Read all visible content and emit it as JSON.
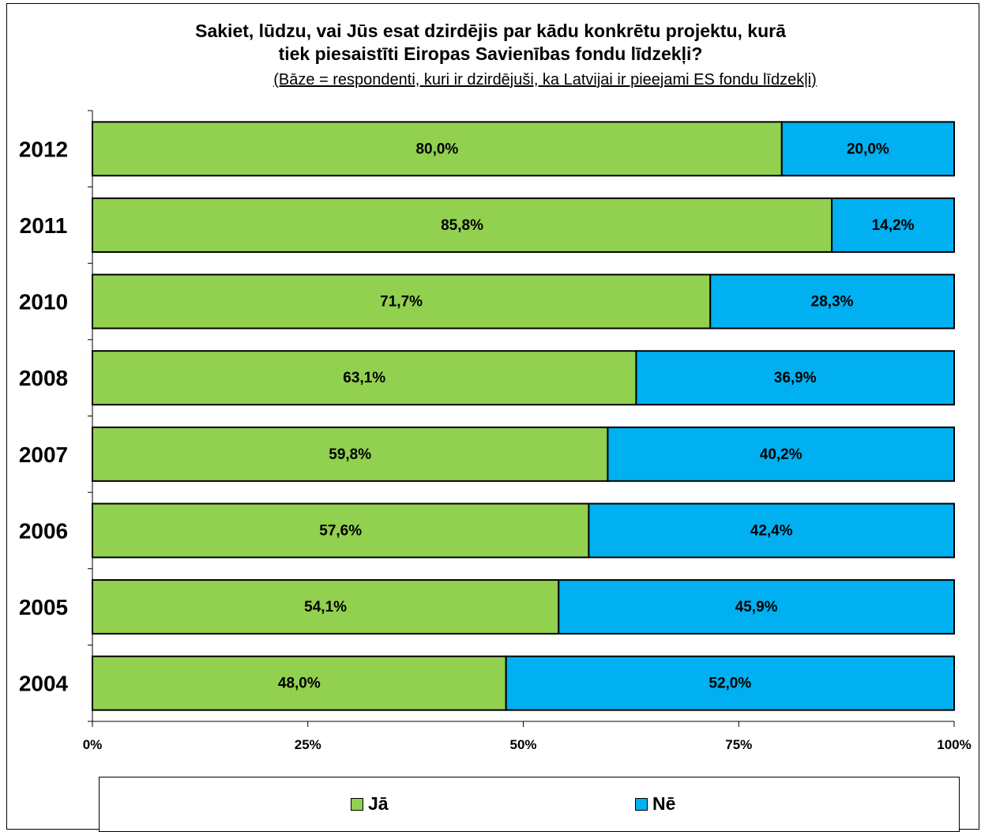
{
  "title_line1": "Sakiet, lūdzu, vai Jūs esat dzirdējis par kādu konkrētu projektu, kurā",
  "title_line2": "tiek piesaistīti Eiropas Savienības fondu līdzekļi?",
  "subtitle": "(Bāze = respondenti, kuri ir dzirdējuši, ka Latvijai ir pieejami ES fondu līdzekļi)",
  "colors": {
    "ja": "#92d050",
    "ne": "#00b0f0",
    "border": "#000000"
  },
  "legend": {
    "ja": "Jā",
    "ne": "Nē"
  },
  "chart_data": {
    "type": "bar",
    "orientation": "horizontal",
    "stacked": true,
    "title": "Sakiet, lūdzu, vai Jūs esat dzirdējis par kādu konkrētu projektu, kurā tiek piesaistīti Eiropas Savienības fondu līdzekļi?",
    "subtitle": "(Bāze = respondenti, kuri ir dzirdējuši, ka Latvijai ir pieejami ES fondu līdzekļi)",
    "categories": [
      "2012",
      "2011",
      "2010",
      "2008",
      "2007",
      "2006",
      "2005",
      "2004"
    ],
    "series": [
      {
        "name": "Jā",
        "values": [
          80.0,
          85.8,
          71.7,
          63.1,
          59.8,
          57.6,
          54.1,
          48.0
        ],
        "labels": [
          "80,0%",
          "85,8%",
          "71,7%",
          "63,1%",
          "59,8%",
          "57,6%",
          "54,1%",
          "48,0%"
        ]
      },
      {
        "name": "Nē",
        "values": [
          20.0,
          14.2,
          28.3,
          36.9,
          40.2,
          42.4,
          45.9,
          52.0
        ],
        "labels": [
          "20,0%",
          "14,2%",
          "28,3%",
          "36,9%",
          "40,2%",
          "42,4%",
          "45,9%",
          "52,0%"
        ]
      }
    ],
    "xlim": [
      0,
      100
    ],
    "x_ticks": [
      0,
      25,
      50,
      75,
      100
    ],
    "x_tick_labels": [
      "0%",
      "25%",
      "50%",
      "75%",
      "100%"
    ],
    "legend_position": "bottom",
    "grid": false
  }
}
